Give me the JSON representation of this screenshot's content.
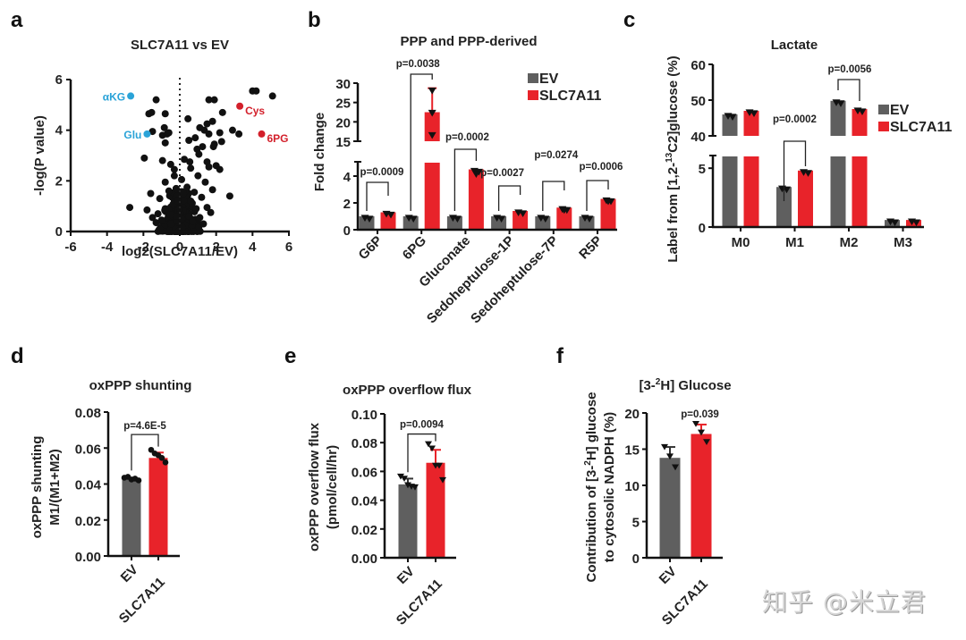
{
  "colors": {
    "ev": "#5f5f5f",
    "slc": "#e8232a",
    "axis": "#111111",
    "blue": "#2aa3d8",
    "red_label": "#d3202b",
    "points": "#111111"
  },
  "watermark": "知乎 @米立君",
  "chart_data": [
    {
      "panel": "a",
      "type": "scatter",
      "title": "SLC7A11 vs EV",
      "xlabel": "log2(SLC7A11/EV)",
      "ylabel": "-log(P value)",
      "xlim": [
        -6,
        6
      ],
      "ylim": [
        0,
        6
      ],
      "xticks": [
        -6,
        -4,
        -2,
        0,
        2,
        4,
        6
      ],
      "yticks": [
        0,
        2,
        4,
        6
      ],
      "vline": 0,
      "highlighted": [
        {
          "label": "αKG",
          "x": -2.7,
          "y": 5.35,
          "color": "blue",
          "side": "left"
        },
        {
          "label": "Glu",
          "x": -1.8,
          "y": 3.85,
          "color": "blue",
          "side": "left"
        },
        {
          "label": "Cys",
          "x": 3.3,
          "y": 4.95,
          "color": "red_label",
          "side": "right"
        },
        {
          "label": "6PG",
          "x": 4.5,
          "y": 3.85,
          "color": "red_label",
          "side": "right"
        }
      ],
      "points": [
        [
          -1.3,
          5.2
        ],
        [
          1.6,
          5.2
        ],
        [
          1.9,
          5.2
        ],
        [
          4.0,
          5.55
        ],
        [
          4.2,
          5.55
        ],
        [
          5.1,
          5.35
        ],
        [
          -1.7,
          4.65
        ],
        [
          -1.55,
          4.7
        ],
        [
          -0.8,
          4.65
        ],
        [
          2.35,
          4.7
        ],
        [
          -1.5,
          3.95
        ],
        [
          -0.85,
          4.1
        ],
        [
          -0.95,
          3.8
        ],
        [
          -0.7,
          3.85
        ],
        [
          -0.6,
          3.9
        ],
        [
          -0.8,
          3.5
        ],
        [
          0.45,
          4.45
        ],
        [
          1.1,
          4.1
        ],
        [
          1.5,
          4.25
        ],
        [
          1.8,
          4.35
        ],
        [
          1.35,
          4.0
        ],
        [
          1.6,
          3.85
        ],
        [
          2.2,
          3.9
        ],
        [
          2.9,
          4.0
        ],
        [
          3.25,
          3.85
        ],
        [
          0.5,
          3.6
        ],
        [
          0.85,
          3.7
        ],
        [
          0.95,
          3.25
        ],
        [
          1.05,
          3.05
        ],
        [
          1.25,
          3.35
        ],
        [
          1.9,
          3.45
        ],
        [
          1.85,
          3.35
        ],
        [
          2.3,
          3.55
        ],
        [
          -1.95,
          2.9
        ],
        [
          -0.95,
          2.8
        ],
        [
          -0.5,
          2.65
        ],
        [
          -0.3,
          2.45
        ],
        [
          0.25,
          2.85
        ],
        [
          0.55,
          2.75
        ],
        [
          0.6,
          2.5
        ],
        [
          1.5,
          2.75
        ],
        [
          1.6,
          2.55
        ],
        [
          2.0,
          2.6
        ],
        [
          2.2,
          2.45
        ],
        [
          1.0,
          2.2
        ],
        [
          1.4,
          1.95
        ],
        [
          1.8,
          1.65
        ],
        [
          2.75,
          1.4
        ],
        [
          -2.75,
          0.95
        ],
        [
          -1.6,
          1.5
        ],
        [
          -1.1,
          1.3
        ],
        [
          -0.8,
          1.95
        ],
        [
          -0.3,
          2.2
        ],
        [
          0.1,
          2.05
        ],
        [
          0.4,
          1.75
        ],
        [
          0.8,
          1.55
        ],
        [
          1.2,
          1.35
        ],
        [
          1.5,
          0.95
        ],
        [
          1.7,
          0.75
        ],
        [
          -1.8,
          0.85
        ],
        [
          -1.5,
          0.55
        ],
        [
          -1.2,
          0.7
        ],
        [
          -1.0,
          0.45
        ],
        [
          -0.6,
          1.6
        ],
        [
          -0.2,
          1.7
        ],
        [
          0.2,
          1.5
        ],
        [
          0.6,
          1.2
        ],
        [
          0.9,
          0.9
        ],
        [
          1.1,
          0.55
        ],
        [
          -0.5,
          0.3
        ],
        [
          0.3,
          0.25
        ],
        [
          -0.2,
          0.6
        ],
        [
          0.0,
          0.9
        ],
        [
          0.5,
          0.6
        ],
        [
          -0.8,
          0.9
        ],
        [
          0.7,
          0.4
        ],
        [
          -1.3,
          0.35
        ],
        [
          1.3,
          0.3
        ],
        [
          -0.1,
          1.2
        ],
        [
          0.15,
          0.15
        ]
      ],
      "cloud_note": "dense cluster of many metabolites near x≈0, y<1.5"
    },
    {
      "panel": "b",
      "type": "bar",
      "title": "PPP and PPP-derived",
      "ylabel": "Fold change",
      "categories": [
        "G6P",
        "6PG",
        "Gluconate",
        "Sedoheptulose-1P",
        "Sedoheptulose-7P",
        "R5P"
      ],
      "series": [
        {
          "name": "EV",
          "values": [
            1.0,
            1.0,
            1.0,
            1.0,
            1.0,
            1.0
          ],
          "errors": [
            0.1,
            0.15,
            0.08,
            0.06,
            0.1,
            0.08
          ]
        },
        {
          "name": "SLC7A11",
          "values": [
            1.3,
            22.5,
            4.5,
            1.4,
            1.65,
            2.3
          ],
          "errors": [
            0.1,
            6.2,
            0.45,
            0.12,
            0.25,
            0.25
          ]
        }
      ],
      "yaxis_break": {
        "lower": [
          0,
          5
        ],
        "upper": [
          15,
          30
        ]
      },
      "yticks_lower": [
        0,
        2,
        4
      ],
      "yticks_upper": [
        15,
        20,
        25,
        30
      ],
      "pvalues": [
        "p=0.0009",
        "p=0.0038",
        "p=0.0002",
        "p=0.0027",
        "p=0.0274",
        "p=0.0006"
      ],
      "legend": {
        "position": "top-right",
        "entries": [
          "EV",
          "SLC7A11"
        ]
      }
    },
    {
      "panel": "c",
      "type": "bar",
      "title": "Lactate",
      "ylabel": "Label from [1,2-13C2]glucose (%)",
      "ylabel_parts": {
        "pre": "Label from [1,2-",
        "sup": "13",
        "post": "C2]glucose (%)"
      },
      "categories": [
        "M0",
        "M1",
        "M2",
        "M3"
      ],
      "series": [
        {
          "name": "EV",
          "values": [
            46.0,
            3.4,
            49.8,
            0.6
          ]
        },
        {
          "name": "SLC7A11",
          "values": [
            47.0,
            4.8,
            47.5,
            0.6
          ]
        }
      ],
      "yaxis_break": {
        "lower": [
          0,
          6
        ],
        "upper": [
          40,
          60
        ]
      },
      "yticks_lower": [
        0,
        5
      ],
      "yticks_upper": [
        40,
        50,
        60
      ],
      "pvalues": [
        {
          "category": "M1",
          "text": "p=0.0002"
        },
        {
          "category": "M2",
          "text": "p=0.0056"
        }
      ],
      "legend": {
        "position": "right",
        "entries": [
          "EV",
          "SLC7A11"
        ]
      }
    },
    {
      "panel": "d",
      "type": "bar",
      "title": "oxPPP shunting",
      "ylabel": "oxPPP shunting",
      "ylabel2": "M1/(M1+M2)",
      "categories": [
        "EV",
        "SLC7A11"
      ],
      "values": [
        0.0425,
        0.0545
      ],
      "errors": [
        0.001,
        0.003
      ],
      "ylim": [
        0,
        0.08
      ],
      "yticks": [
        "0.00",
        "0.02",
        "0.04",
        "0.06",
        "0.08"
      ],
      "pvalue": "p=4.6E-5",
      "points_marker": "circle",
      "replicates": [
        [
          0.0435,
          0.044,
          0.0425,
          0.043,
          0.042
        ],
        [
          0.059,
          0.057,
          0.056,
          0.0545,
          0.052
        ]
      ]
    },
    {
      "panel": "e",
      "type": "bar",
      "title": "oxPPP overflow flux",
      "ylabel": "oxPPP overflow flux",
      "ylabel2": "(pmol/cell/hr)",
      "categories": [
        "EV",
        "SLC7A11"
      ],
      "values": [
        0.051,
        0.066
      ],
      "errors": [
        0.004,
        0.009
      ],
      "ylim": [
        0,
        0.1
      ],
      "yticks": [
        "0.00",
        "0.02",
        "0.04",
        "0.06",
        "0.08",
        "0.10"
      ],
      "pvalue": "p=0.0094",
      "points_marker": "triangle",
      "replicates": [
        [
          0.0565,
          0.055,
          0.0505,
          0.0495,
          0.049
        ],
        [
          0.079,
          0.076,
          0.064,
          0.064,
          0.054
        ]
      ]
    },
    {
      "panel": "f",
      "type": "bar",
      "title": "[3-2H] Glucose",
      "title_parts": {
        "pre": "[3-",
        "sup": "2",
        "post": "H] Glucose"
      },
      "ylabel": "Contribution of [3-2H] glucose",
      "ylabel_parts": {
        "pre": "Contribution of [3-",
        "sup": "2",
        "post": "H] glucose"
      },
      "ylabel2": "to cytosolic NADPH (%)",
      "categories": [
        "EV",
        "SLC7A11"
      ],
      "values": [
        13.8,
        17.1
      ],
      "errors": [
        1.5,
        1.3
      ],
      "ylim": [
        0,
        20
      ],
      "yticks": [
        "0",
        "5",
        "10",
        "15",
        "20"
      ],
      "pvalue": "p=0.039",
      "points_marker": "triangle",
      "replicates": [
        [
          15.3,
          14.0,
          12.5
        ],
        [
          18.5,
          17.3,
          16.0
        ]
      ]
    }
  ]
}
